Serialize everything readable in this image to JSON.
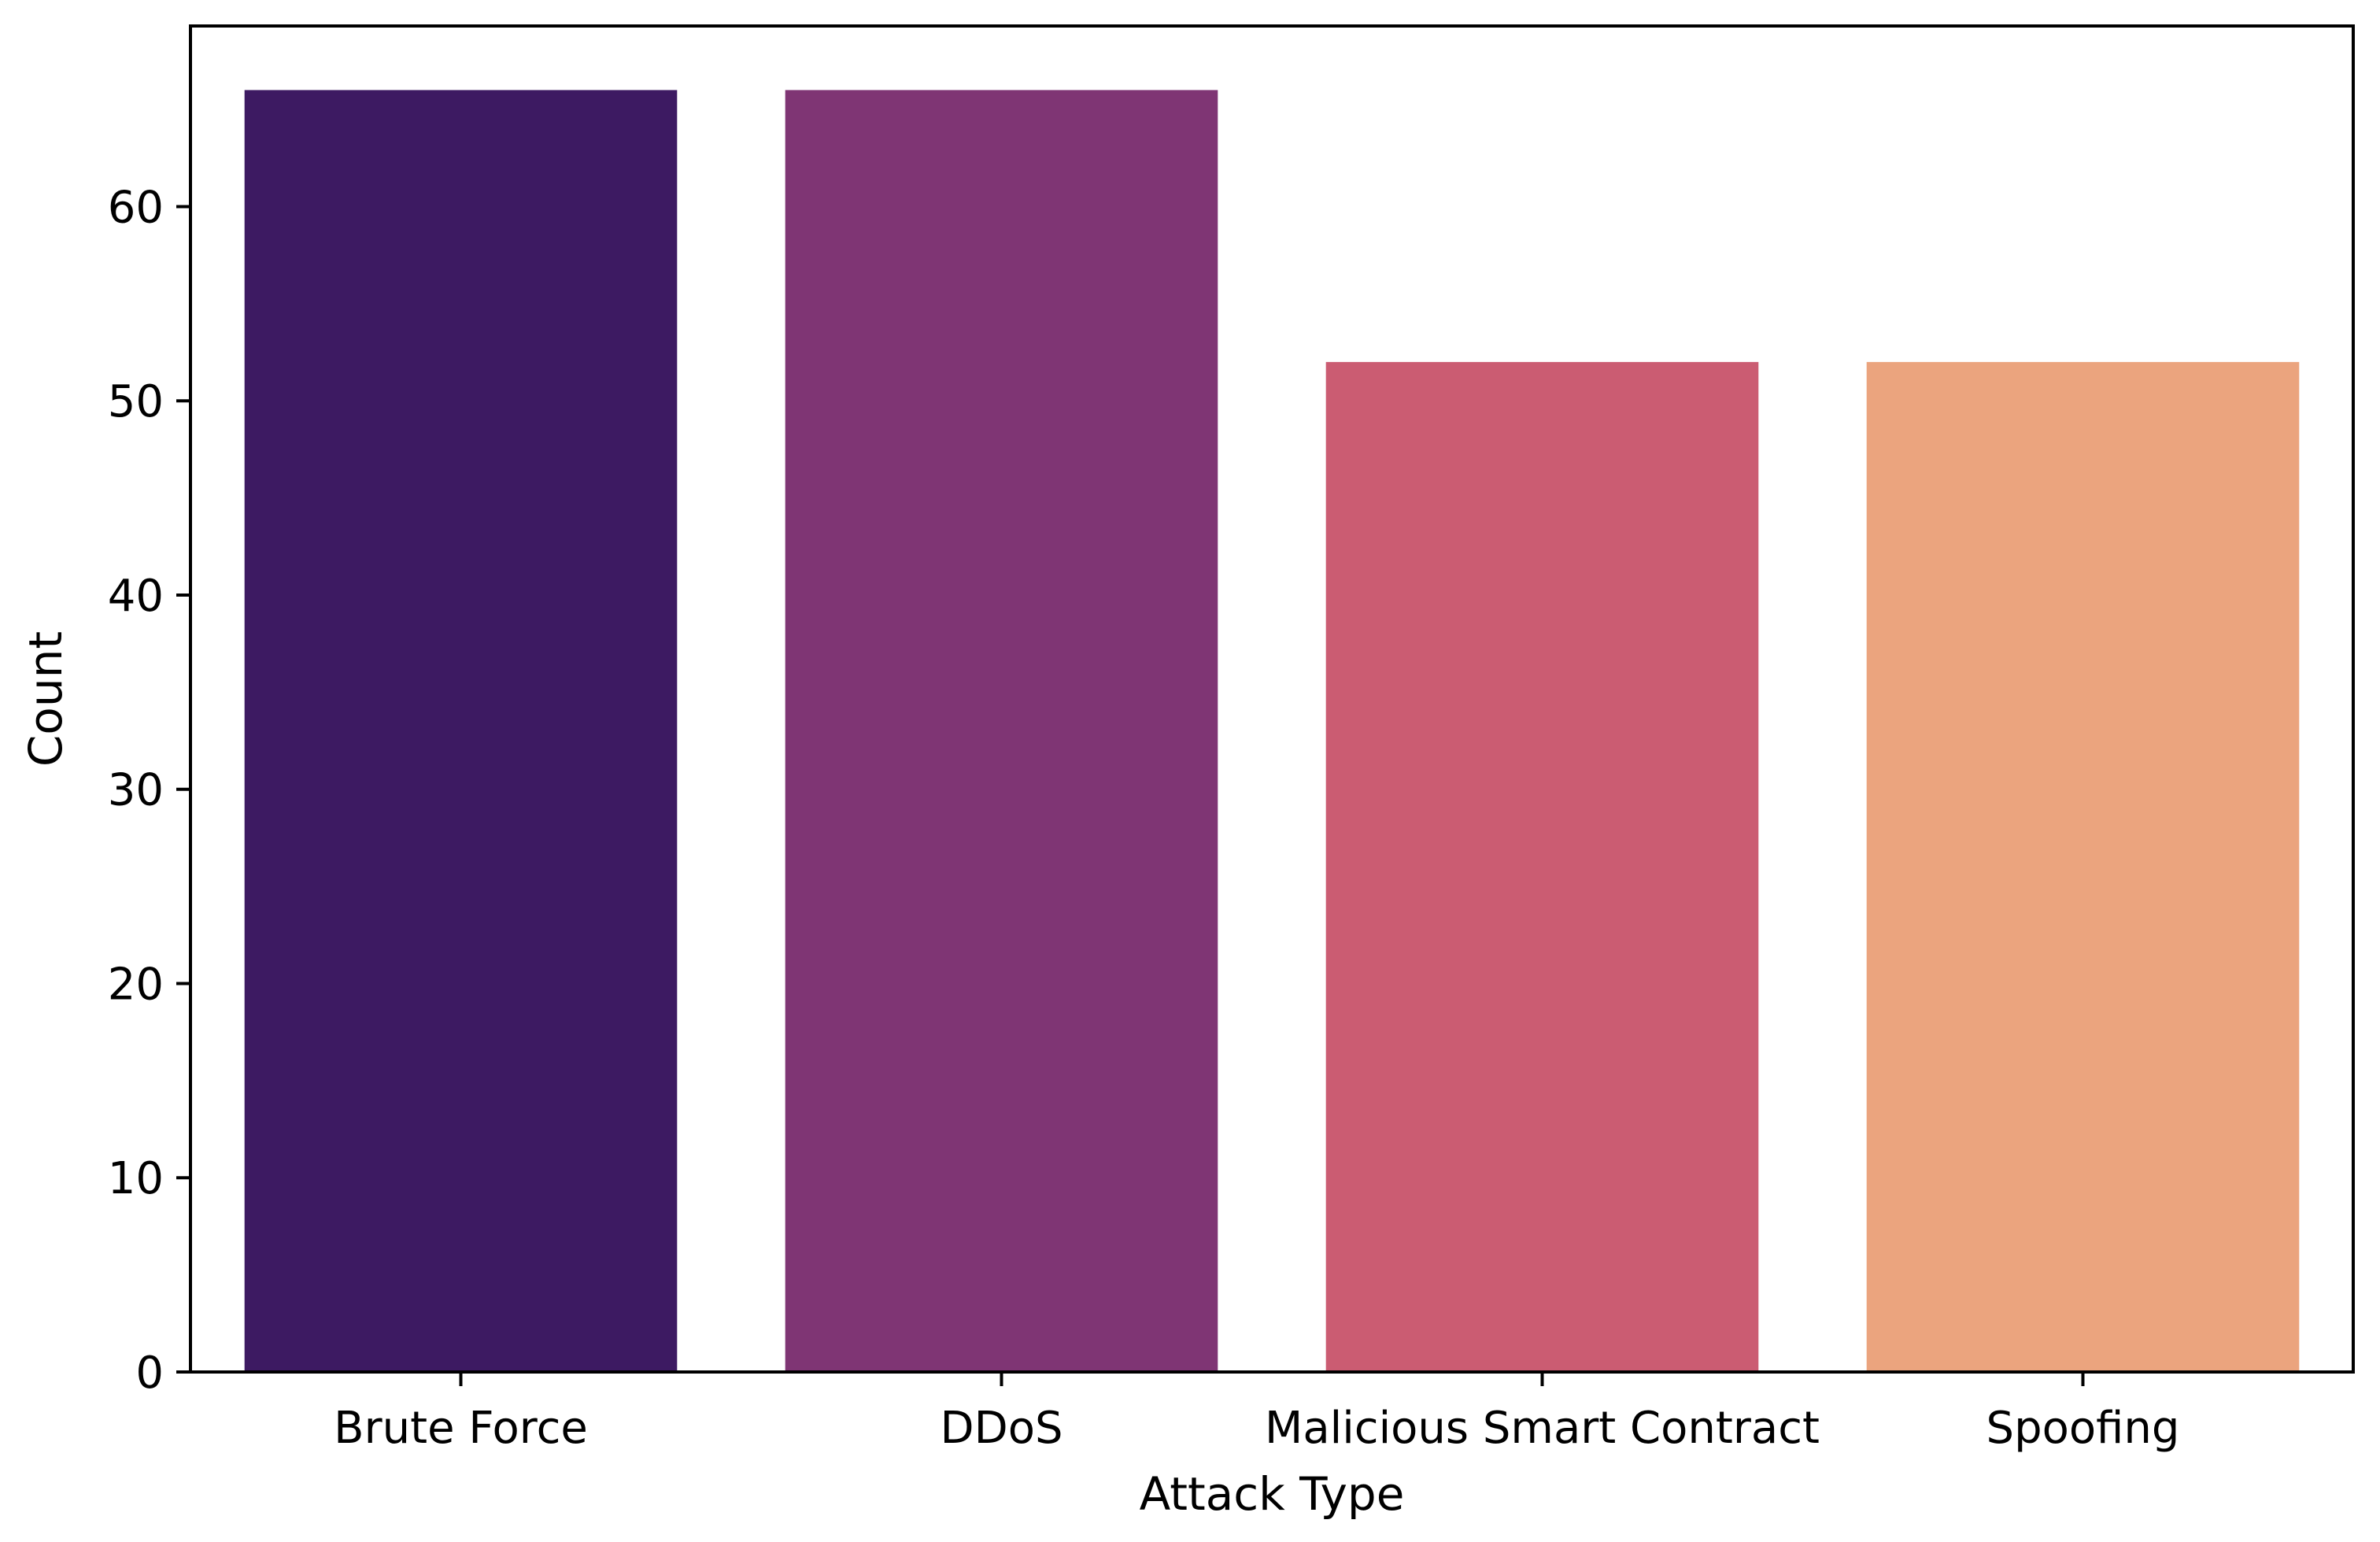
{
  "chart_data": {
    "type": "bar",
    "title": "",
    "xlabel": "Attack Type",
    "ylabel": "Count",
    "categories": [
      "Brute Force",
      "DDoS",
      "Malicious Smart Contract",
      "Spoofing"
    ],
    "values": [
      66,
      66,
      52,
      52
    ],
    "colors": [
      "#3d1a62",
      "#7f3574",
      "#cb5c72",
      "#eba47e"
    ],
    "ylim": [
      0,
      69.3
    ],
    "yticks": [
      0,
      10,
      20,
      30,
      40,
      50,
      60
    ],
    "grid": false,
    "legend": "none"
  }
}
